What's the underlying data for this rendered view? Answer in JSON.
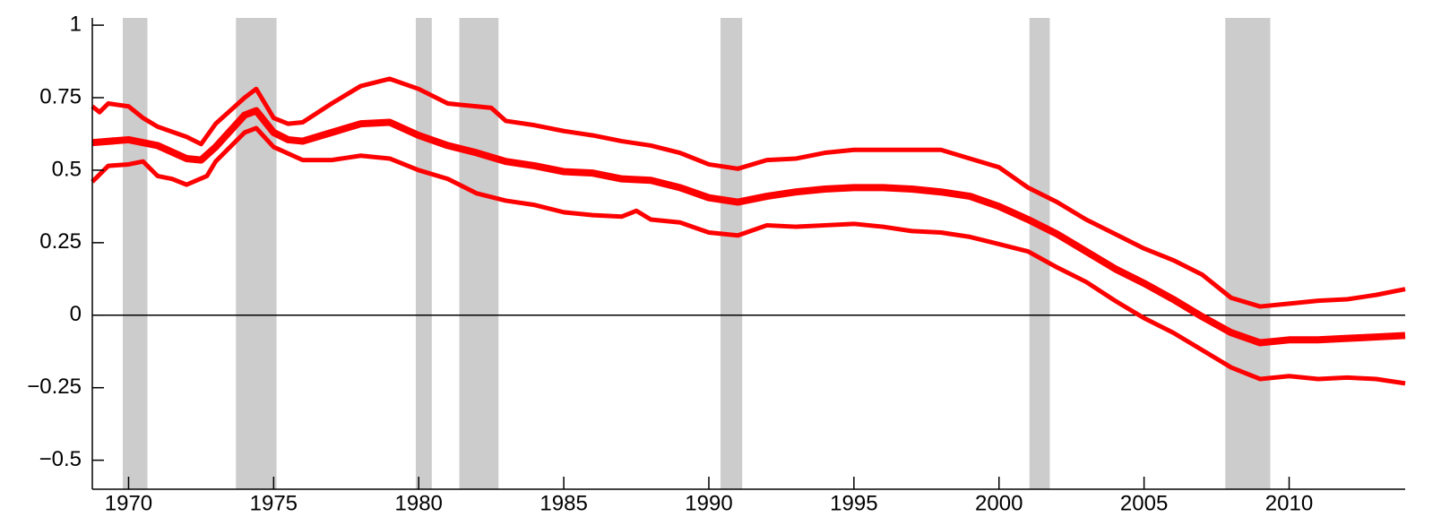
{
  "chart_data": {
    "type": "line",
    "xlim": [
      1968.75,
      2014
    ],
    "ylim": [
      -0.6,
      1.025
    ],
    "xticks": [
      1970,
      1975,
      1980,
      1985,
      1990,
      1995,
      2000,
      2005,
      2010
    ],
    "yticks": [
      1,
      0.75,
      0.5,
      0.25,
      0,
      {
        "value": -0.25,
        "label": "−0.25"
      },
      {
        "value": -0.5,
        "label": "−0.5"
      }
    ],
    "zero_line": true,
    "shading_color": "#cccccc",
    "recessions": [
      [
        1969.8,
        1970.65
      ],
      [
        1973.7,
        1975.1
      ],
      [
        1979.9,
        1980.45
      ],
      [
        1981.4,
        1982.75
      ],
      [
        1990.4,
        1991.15
      ],
      [
        2001.05,
        2001.75
      ],
      [
        2007.8,
        2009.35
      ]
    ],
    "series": [
      {
        "color": "#ff0000",
        "width": 5,
        "x": [
          1968.75,
          1969,
          1969.3,
          1970,
          1970.5,
          1971,
          1972,
          1972.5,
          1973,
          1974,
          1974.4,
          1975,
          1975.5,
          1976,
          1977,
          1978,
          1979,
          1980,
          1981,
          1982,
          1982.5,
          1983,
          1984,
          1985,
          1986,
          1987,
          1988,
          1989,
          1990,
          1991,
          1992,
          1993,
          1994,
          1995,
          1996,
          1997,
          1998,
          1999,
          2000,
          2001,
          2002,
          2003,
          2004,
          2005,
          2006,
          2007,
          2008,
          2009,
          2010,
          2011,
          2012,
          2013,
          2014
        ],
        "values": [
          0.72,
          0.7,
          0.73,
          0.72,
          0.68,
          0.65,
          0.615,
          0.59,
          0.66,
          0.75,
          0.78,
          0.68,
          0.66,
          0.665,
          0.73,
          0.79,
          0.815,
          0.78,
          0.73,
          0.72,
          0.715,
          0.67,
          0.655,
          0.635,
          0.62,
          0.6,
          0.585,
          0.56,
          0.52,
          0.505,
          0.535,
          0.54,
          0.56,
          0.57,
          0.57,
          0.57,
          0.57,
          0.54,
          0.51,
          0.44,
          0.39,
          0.33,
          0.28,
          0.23,
          0.19,
          0.14,
          0.06,
          0.03,
          0.04,
          0.05,
          0.055,
          0.07,
          0.09
        ]
      },
      {
        "color": "#ff0000",
        "width": 8,
        "x": [
          1968.75,
          1970,
          1971,
          1972,
          1972.5,
          1973,
          1974,
          1974.4,
          1975,
          1975.5,
          1976,
          1977,
          1978,
          1979,
          1980,
          1981,
          1982,
          1983,
          1984,
          1985,
          1986,
          1987,
          1988,
          1989,
          1990,
          1991,
          1992,
          1993,
          1994,
          1995,
          1996,
          1997,
          1998,
          1999,
          2000,
          2001,
          2002,
          2003,
          2004,
          2005,
          2006,
          2007,
          2008,
          2009,
          2009.5,
          2010,
          2011,
          2012,
          2013,
          2014
        ],
        "values": [
          0.595,
          0.605,
          0.585,
          0.54,
          0.535,
          0.58,
          0.69,
          0.705,
          0.63,
          0.605,
          0.6,
          0.63,
          0.66,
          0.665,
          0.62,
          0.585,
          0.56,
          0.53,
          0.515,
          0.495,
          0.49,
          0.47,
          0.465,
          0.44,
          0.405,
          0.39,
          0.41,
          0.425,
          0.435,
          0.44,
          0.44,
          0.435,
          0.425,
          0.41,
          0.375,
          0.33,
          0.28,
          0.22,
          0.16,
          0.11,
          0.055,
          -0.005,
          -0.06,
          -0.095,
          -0.09,
          -0.085,
          -0.085,
          -0.08,
          -0.075,
          -0.07
        ]
      },
      {
        "color": "#ff0000",
        "width": 5,
        "x": [
          1968.75,
          1969.3,
          1970,
          1970.5,
          1971,
          1971.5,
          1972,
          1972.7,
          1973,
          1974,
          1974.4,
          1975,
          1976,
          1977,
          1978,
          1979,
          1980,
          1981,
          1982,
          1983,
          1984,
          1985,
          1986,
          1987,
          1987.5,
          1988,
          1989,
          1990,
          1991,
          1992,
          1993,
          1994,
          1995,
          1996,
          1997,
          1998,
          1999,
          2000,
          2001,
          2002,
          2003,
          2004,
          2005,
          2006,
          2007,
          2008,
          2009,
          2010,
          2011,
          2012,
          2013,
          2014
        ],
        "values": [
          0.46,
          0.515,
          0.52,
          0.53,
          0.48,
          0.47,
          0.45,
          0.48,
          0.53,
          0.63,
          0.645,
          0.58,
          0.535,
          0.535,
          0.55,
          0.54,
          0.5,
          0.47,
          0.42,
          0.395,
          0.38,
          0.355,
          0.345,
          0.34,
          0.36,
          0.33,
          0.32,
          0.285,
          0.275,
          0.31,
          0.305,
          0.31,
          0.315,
          0.305,
          0.29,
          0.285,
          0.27,
          0.245,
          0.22,
          0.165,
          0.115,
          0.05,
          -0.01,
          -0.06,
          -0.12,
          -0.18,
          -0.22,
          -0.21,
          -0.22,
          -0.215,
          -0.22,
          -0.235
        ]
      }
    ]
  }
}
